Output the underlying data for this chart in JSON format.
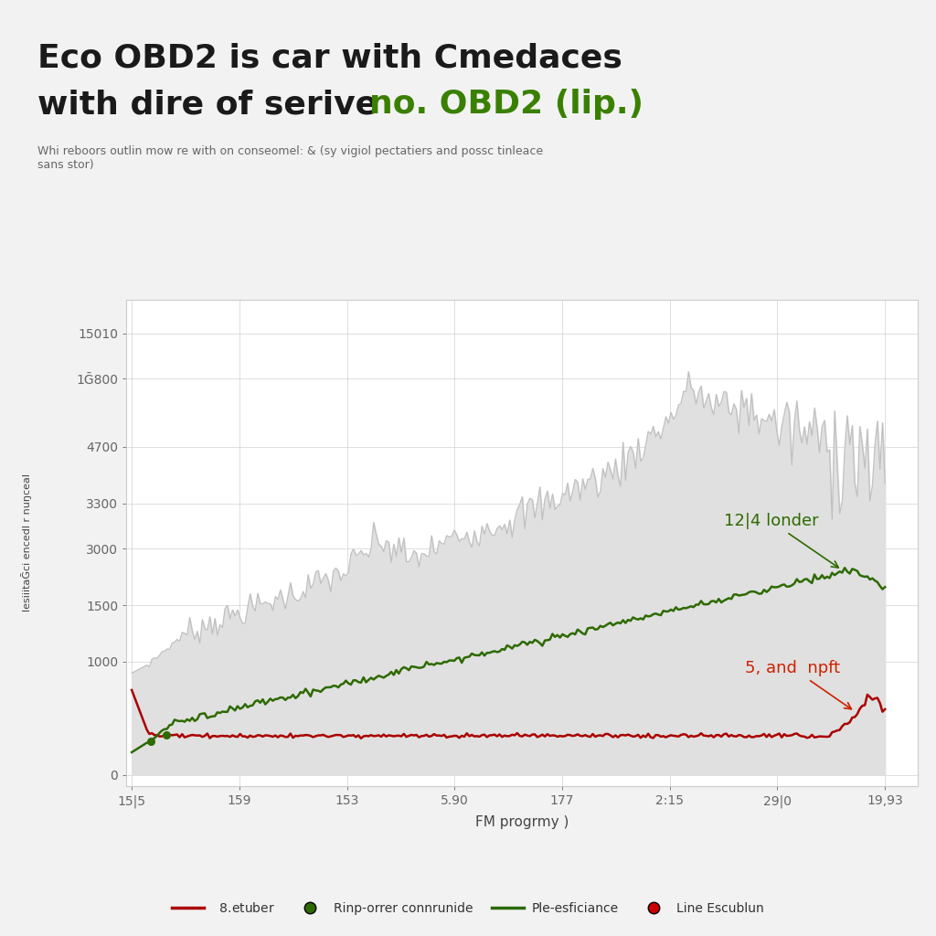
{
  "title_line1_black": "Eco OBD2 is car with Cmedaces",
  "title_line2_black": "with dire of serive ",
  "title_line2_green": "no. OBD2 (lip.)",
  "subtitle": "Whi reboors outlin mow re with on conseomel: & (sy vigiol pectatiers and possc tinleace\nsans stor)",
  "xlabel": "FM progrmy )",
  "ylabel": "lesiiitaḠci encedl r nuŋceal",
  "ytick_labels": [
    "0",
    "1000",
    "1500",
    "3000",
    "3300",
    "4700",
    "1Ḡ800",
    "15010"
  ],
  "ytick_positions": [
    0,
    1000,
    1500,
    2000,
    2400,
    2900,
    3500,
    3900
  ],
  "xtick_labels": [
    "15|5",
    "159",
    "153",
    "5.90",
    "177",
    "2:15",
    "29|0",
    "19,93"
  ],
  "annotation_green": "12|4 londer",
  "annotation_red": "5, and  npft",
  "bg_color": "#f2f2f2",
  "plot_bg_color": "#ffffff",
  "area_fill_color": "#e0e0e0",
  "area_line_color": "#b8b8b8",
  "green_line_color": "#2d6a00",
  "red_line_color": "#aa0000",
  "title_fontsize": 26,
  "subtitle_fontsize": 9,
  "axis_label_fontsize": 11,
  "tick_fontsize": 10,
  "annotation_fontsize": 13
}
